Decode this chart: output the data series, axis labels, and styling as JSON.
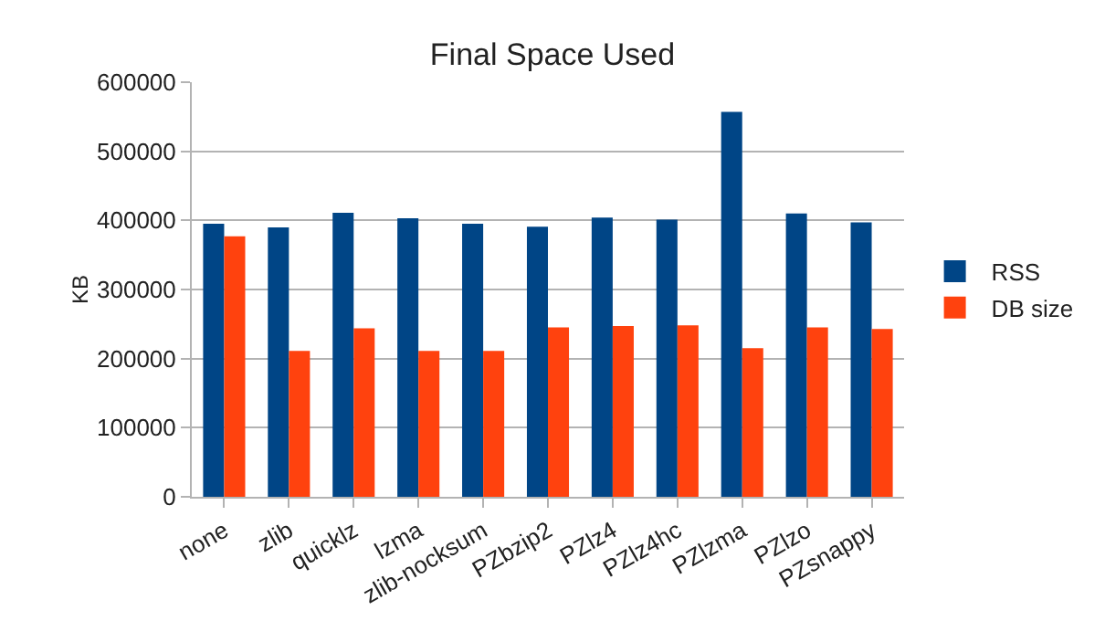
{
  "chart_data": {
    "type": "bar",
    "title": "Final Space Used",
    "ylabel": "KB",
    "categories": [
      "none",
      "zlib",
      "quicklz",
      "lzma",
      "zlib-nocksum",
      "PZbzip2",
      "PZlz4",
      "PZlz4hc",
      "PZlzma",
      "PZlzo",
      "PZsnappy"
    ],
    "series": [
      {
        "name": "RSS",
        "color": "#004586",
        "values": [
          395000,
          390000,
          411000,
          403000,
          395000,
          391000,
          404000,
          401000,
          557000,
          410000,
          397000
        ]
      },
      {
        "name": "DB size",
        "color": "#ff420e",
        "values": [
          377000,
          211000,
          244000,
          211000,
          211000,
          245000,
          247000,
          248000,
          215000,
          245000,
          243000
        ]
      }
    ],
    "ylim": [
      0,
      600000
    ],
    "yticks": [
      0,
      100000,
      200000,
      300000,
      400000,
      500000,
      600000
    ],
    "grid": "y",
    "legend": "right"
  }
}
